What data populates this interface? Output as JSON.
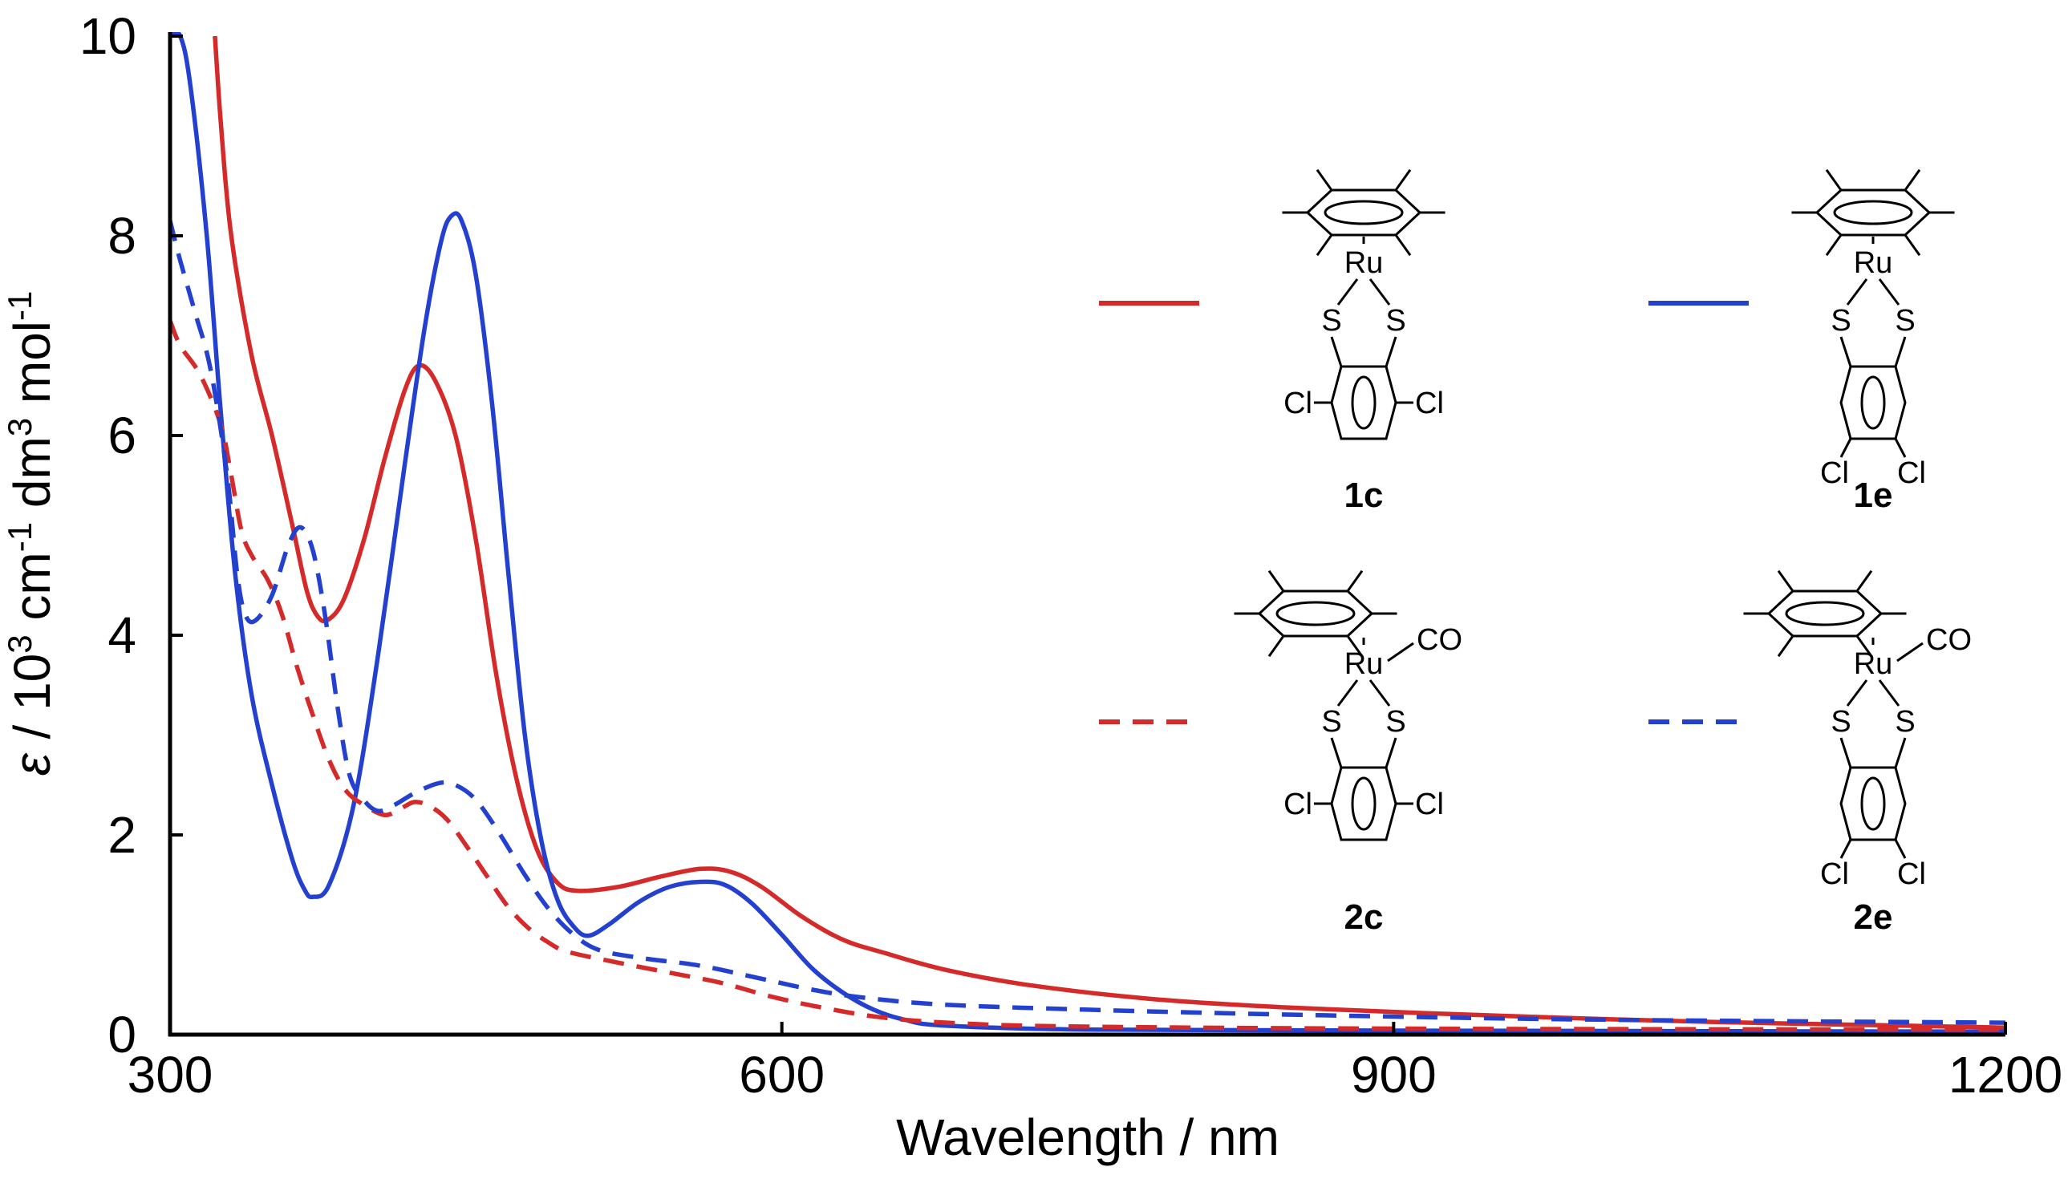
{
  "chart_data": {
    "type": "line",
    "title": "",
    "xlabel": "Wavelength / nm",
    "ylabel_parts": [
      "ε",
      " / 10",
      "3",
      " cm",
      "-1",
      " dm",
      "3",
      " mol",
      "-1"
    ],
    "xlim": [
      300,
      1200
    ],
    "ylim": [
      0,
      10
    ],
    "xticks": [
      "300",
      "600",
      "900",
      "1200"
    ],
    "xtick_values": [
      300,
      600,
      900,
      1200
    ],
    "yticks": [
      "0",
      "2",
      "4",
      "6",
      "8",
      "10"
    ],
    "ytick_values": [
      0,
      2,
      4,
      6,
      8,
      10
    ],
    "grid": false,
    "series": [
      {
        "name": "1c",
        "color": "#d42a2a",
        "style": "solid",
        "points": [
          [
            322,
            10.0
          ],
          [
            325,
            9.1
          ],
          [
            330,
            8.0
          ],
          [
            340,
            6.8
          ],
          [
            350,
            6.0
          ],
          [
            360,
            5.1
          ],
          [
            367,
            4.45
          ],
          [
            372,
            4.2
          ],
          [
            377,
            4.15
          ],
          [
            385,
            4.35
          ],
          [
            395,
            4.95
          ],
          [
            405,
            5.75
          ],
          [
            415,
            6.45
          ],
          [
            422,
            6.7
          ],
          [
            430,
            6.55
          ],
          [
            440,
            6.0
          ],
          [
            450,
            4.95
          ],
          [
            460,
            3.6
          ],
          [
            470,
            2.55
          ],
          [
            480,
            1.85
          ],
          [
            490,
            1.52
          ],
          [
            500,
            1.44
          ],
          [
            520,
            1.48
          ],
          [
            540,
            1.58
          ],
          [
            560,
            1.66
          ],
          [
            575,
            1.63
          ],
          [
            590,
            1.48
          ],
          [
            610,
            1.18
          ],
          [
            630,
            0.95
          ],
          [
            650,
            0.82
          ],
          [
            680,
            0.65
          ],
          [
            720,
            0.5
          ],
          [
            780,
            0.36
          ],
          [
            850,
            0.27
          ],
          [
            950,
            0.19
          ],
          [
            1050,
            0.13
          ],
          [
            1150,
            0.09
          ],
          [
            1200,
            0.07
          ]
        ]
      },
      {
        "name": "1e",
        "color": "#2440cf",
        "style": "solid",
        "points": [
          [
            300,
            10.0
          ],
          [
            305,
            10.0
          ],
          [
            310,
            9.5
          ],
          [
            318,
            8.0
          ],
          [
            325,
            6.2
          ],
          [
            332,
            4.6
          ],
          [
            340,
            3.4
          ],
          [
            350,
            2.5
          ],
          [
            360,
            1.75
          ],
          [
            366,
            1.45
          ],
          [
            370,
            1.38
          ],
          [
            378,
            1.5
          ],
          [
            390,
            2.3
          ],
          [
            402,
            3.8
          ],
          [
            415,
            5.7
          ],
          [
            425,
            7.1
          ],
          [
            433,
            7.95
          ],
          [
            438,
            8.2
          ],
          [
            443,
            8.15
          ],
          [
            450,
            7.6
          ],
          [
            458,
            6.3
          ],
          [
            466,
            4.6
          ],
          [
            474,
            3.0
          ],
          [
            482,
            1.95
          ],
          [
            490,
            1.35
          ],
          [
            498,
            1.08
          ],
          [
            505,
            0.99
          ],
          [
            515,
            1.1
          ],
          [
            530,
            1.33
          ],
          [
            545,
            1.48
          ],
          [
            560,
            1.53
          ],
          [
            572,
            1.5
          ],
          [
            585,
            1.32
          ],
          [
            600,
            1.0
          ],
          [
            615,
            0.66
          ],
          [
            630,
            0.42
          ],
          [
            645,
            0.25
          ],
          [
            660,
            0.15
          ],
          [
            680,
            0.09
          ],
          [
            750,
            0.05
          ],
          [
            900,
            0.04
          ],
          [
            1200,
            0.03
          ]
        ]
      },
      {
        "name": "2c",
        "color": "#d42a2a",
        "style": "dashed",
        "points": [
          [
            300,
            7.15
          ],
          [
            305,
            6.9
          ],
          [
            315,
            6.6
          ],
          [
            325,
            6.1
          ],
          [
            330,
            5.6
          ],
          [
            335,
            5.05
          ],
          [
            340,
            4.8
          ],
          [
            348,
            4.55
          ],
          [
            355,
            4.2
          ],
          [
            362,
            3.7
          ],
          [
            370,
            3.2
          ],
          [
            378,
            2.75
          ],
          [
            386,
            2.45
          ],
          [
            395,
            2.3
          ],
          [
            405,
            2.2
          ],
          [
            412,
            2.25
          ],
          [
            420,
            2.33
          ],
          [
            428,
            2.28
          ],
          [
            436,
            2.15
          ],
          [
            445,
            1.9
          ],
          [
            455,
            1.6
          ],
          [
            465,
            1.3
          ],
          [
            475,
            1.08
          ],
          [
            485,
            0.93
          ],
          [
            495,
            0.83
          ],
          [
            520,
            0.72
          ],
          [
            545,
            0.62
          ],
          [
            570,
            0.52
          ],
          [
            595,
            0.38
          ],
          [
            620,
            0.27
          ],
          [
            650,
            0.17
          ],
          [
            690,
            0.11
          ],
          [
            750,
            0.08
          ],
          [
            900,
            0.06
          ],
          [
            1200,
            0.05
          ]
        ]
      },
      {
        "name": "2e",
        "color": "#2440cf",
        "style": "dashed",
        "points": [
          [
            300,
            8.15
          ],
          [
            305,
            7.75
          ],
          [
            312,
            7.25
          ],
          [
            320,
            6.65
          ],
          [
            328,
            5.6
          ],
          [
            333,
            4.6
          ],
          [
            337,
            4.2
          ],
          [
            342,
            4.15
          ],
          [
            350,
            4.4
          ],
          [
            358,
            4.9
          ],
          [
            364,
            5.08
          ],
          [
            370,
            4.85
          ],
          [
            376,
            4.2
          ],
          [
            382,
            3.3
          ],
          [
            388,
            2.6
          ],
          [
            395,
            2.35
          ],
          [
            402,
            2.24
          ],
          [
            410,
            2.3
          ],
          [
            420,
            2.42
          ],
          [
            432,
            2.52
          ],
          [
            440,
            2.5
          ],
          [
            450,
            2.35
          ],
          [
            462,
            2.0
          ],
          [
            474,
            1.6
          ],
          [
            486,
            1.25
          ],
          [
            498,
            1.0
          ],
          [
            510,
            0.85
          ],
          [
            530,
            0.77
          ],
          [
            560,
            0.69
          ],
          [
            590,
            0.56
          ],
          [
            615,
            0.45
          ],
          [
            640,
            0.37
          ],
          [
            680,
            0.3
          ],
          [
            750,
            0.25
          ],
          [
            850,
            0.2
          ],
          [
            1000,
            0.15
          ],
          [
            1200,
            0.12
          ]
        ]
      }
    ],
    "legend": {
      "placement": "right",
      "entries": [
        {
          "series": "1c",
          "label": "1c",
          "co": false,
          "cl_pattern": "ortho"
        },
        {
          "series": "1e",
          "label": "1e",
          "co": false,
          "cl_pattern": "para"
        },
        {
          "series": "2c",
          "label": "2c",
          "co": true,
          "cl_pattern": "ortho"
        },
        {
          "series": "2e",
          "label": "2e",
          "co": true,
          "cl_pattern": "para"
        }
      ]
    },
    "structure_labels": {
      "metal": "Ru",
      "sulfur": "S",
      "chlorine": "Cl",
      "carbonyl": "CO"
    }
  }
}
